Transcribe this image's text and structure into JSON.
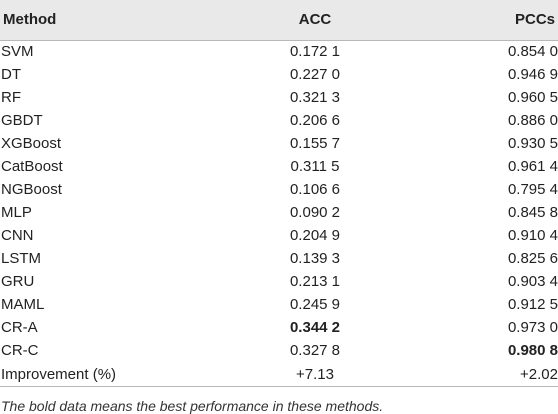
{
  "table": {
    "headers": {
      "method": "Method",
      "acc": "ACC",
      "pccs": "PCCs"
    },
    "rows": [
      {
        "method": "SVM",
        "acc": "0.172 1",
        "pccs": "0.854 0",
        "acc_bold": false,
        "pccs_bold": false
      },
      {
        "method": "DT",
        "acc": "0.227 0",
        "pccs": "0.946 9",
        "acc_bold": false,
        "pccs_bold": false
      },
      {
        "method": "RF",
        "acc": "0.321 3",
        "pccs": "0.960 5",
        "acc_bold": false,
        "pccs_bold": false
      },
      {
        "method": "GBDT",
        "acc": "0.206 6",
        "pccs": "0.886 0",
        "acc_bold": false,
        "pccs_bold": false
      },
      {
        "method": "XGBoost",
        "acc": "0.155 7",
        "pccs": "0.930 5",
        "acc_bold": false,
        "pccs_bold": false
      },
      {
        "method": "CatBoost",
        "acc": "0.311 5",
        "pccs": "0.961 4",
        "acc_bold": false,
        "pccs_bold": false
      },
      {
        "method": "NGBoost",
        "acc": "0.106 6",
        "pccs": "0.795 4",
        "acc_bold": false,
        "pccs_bold": false
      },
      {
        "method": "MLP",
        "acc": "0.090 2",
        "pccs": "0.845 8",
        "acc_bold": false,
        "pccs_bold": false
      },
      {
        "method": "CNN",
        "acc": "0.204 9",
        "pccs": "0.910 4",
        "acc_bold": false,
        "pccs_bold": false
      },
      {
        "method": "LSTM",
        "acc": "0.139 3",
        "pccs": "0.825 6",
        "acc_bold": false,
        "pccs_bold": false
      },
      {
        "method": "GRU",
        "acc": "0.213 1",
        "pccs": "0.903 4",
        "acc_bold": false,
        "pccs_bold": false
      },
      {
        "method": "MAML",
        "acc": "0.245 9",
        "pccs": "0.912 5",
        "acc_bold": false,
        "pccs_bold": false
      },
      {
        "method": "CR-A",
        "acc": "0.344 2",
        "pccs": "0.973 0",
        "acc_bold": true,
        "pccs_bold": false
      },
      {
        "method": "CR-C",
        "acc": "0.327 8",
        "pccs": "0.980 8",
        "acc_bold": false,
        "pccs_bold": true
      },
      {
        "method": "Improvement (%)",
        "acc": "+7.13",
        "pccs": "+2.02",
        "acc_bold": false,
        "pccs_bold": false
      }
    ]
  },
  "footnote": "The bold data means the best performance in these methods."
}
